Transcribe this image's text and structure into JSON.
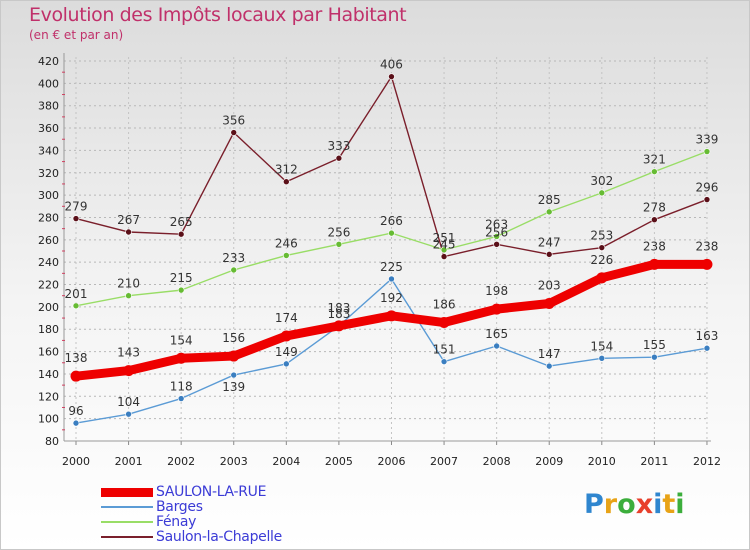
{
  "header": {
    "title": "Evolution des Impôts locaux par Habitant",
    "subtitle": "(en € et par an)"
  },
  "logo": {
    "text": "Proxiti",
    "letters": [
      "P",
      "r",
      "o",
      "x",
      "i",
      "t",
      "i"
    ],
    "colors": [
      "#2f86cf",
      "#e8a317",
      "#3cae3c",
      "#e8402c",
      "#2f86cf",
      "#e8a317",
      "#3cae3c"
    ]
  },
  "chart_data": {
    "type": "line",
    "title": "Evolution des Impôts locaux par Habitant",
    "subtitle": "(en € et par an)",
    "xlabel": "",
    "ylabel": "",
    "ylim": [
      80,
      420
    ],
    "y_ticks": [
      80,
      100,
      120,
      140,
      160,
      180,
      200,
      220,
      240,
      260,
      280,
      300,
      320,
      340,
      360,
      380,
      400,
      420
    ],
    "categories": [
      "2000",
      "2001",
      "2002",
      "2003",
      "2004",
      "2005",
      "2006",
      "2007",
      "2008",
      "2009",
      "2010",
      "2011",
      "2012"
    ],
    "series": [
      {
        "name": "Saulon-la-Chapelle",
        "color": "#7a1f2b",
        "marker": "#5a0f18",
        "values": [
          279,
          267,
          265,
          356,
          312,
          333,
          406,
          245,
          256,
          247,
          253,
          278,
          296
        ]
      },
      {
        "name": "Fénay",
        "color": "#99dd66",
        "marker": "#66bb33",
        "values": [
          201,
          210,
          215,
          233,
          246,
          256,
          266,
          251,
          263,
          285,
          302,
          321,
          339
        ]
      },
      {
        "name": "Barges",
        "color": "#5b9bd5",
        "marker": "#3a7ec0",
        "values": [
          96,
          104,
          118,
          139,
          149,
          183,
          225,
          151,
          165,
          147,
          154,
          155,
          163
        ]
      },
      {
        "name": "SAULON-LA-RUE",
        "color": "#ee0000",
        "marker": "#ee0000",
        "values": [
          138,
          143,
          154,
          156,
          174,
          183,
          192,
          186,
          198,
          203,
          226,
          238,
          238
        ]
      }
    ]
  },
  "legend": [
    {
      "name": "SAULON-LA-RUE",
      "color": "#ee0000"
    },
    {
      "name": "Barges",
      "color": "#5b9bd5"
    },
    {
      "name": "Fénay",
      "color": "#99dd66"
    },
    {
      "name": "Saulon-la-Chapelle",
      "color": "#7a1f2b"
    }
  ]
}
